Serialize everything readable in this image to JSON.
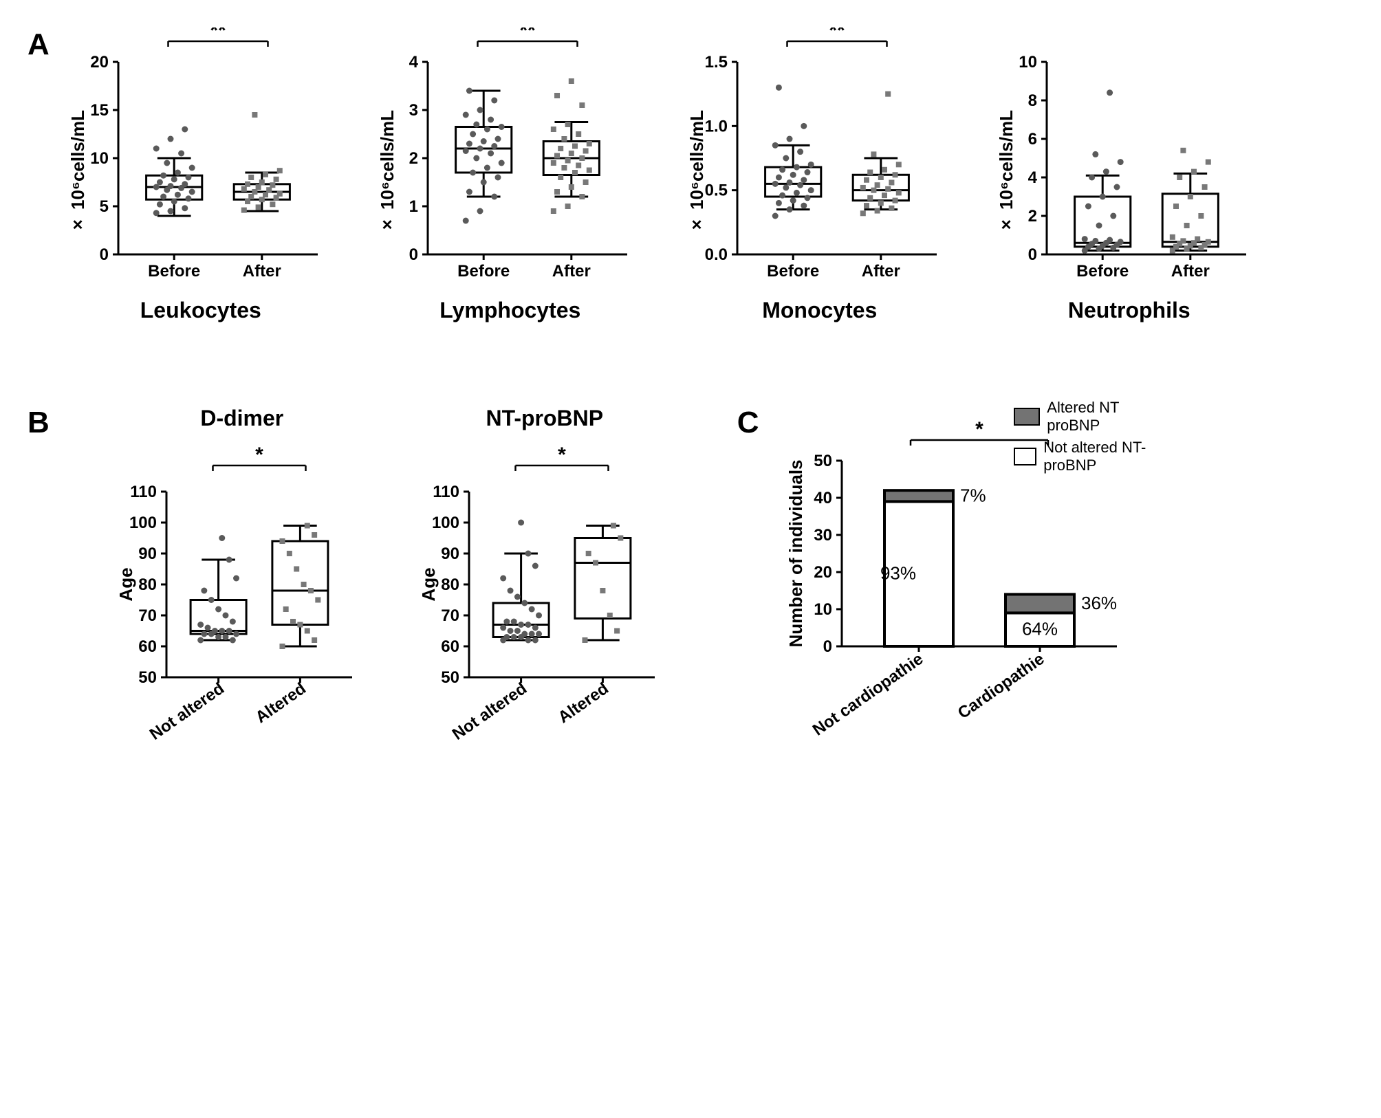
{
  "colors": {
    "background": "#ffffff",
    "axis": "#000000",
    "text": "#000000",
    "marker_before": "#5a5a5a",
    "marker_after": "#787878",
    "box_stroke": "#000000",
    "altered_fill": "#737373",
    "not_altered_fill": "#ffffff"
  },
  "panel_labels": {
    "a": "A",
    "b": "B",
    "c": "C"
  },
  "panelA": {
    "ylabel": "× 10⁶cells/mL",
    "xticks": [
      "Before",
      "After"
    ],
    "charts": [
      {
        "title": "Leukocytes",
        "sig": "**",
        "ylim": [
          0,
          20
        ],
        "ytick_step": 5,
        "before": {
          "min": 4.0,
          "q1": 5.7,
          "median": 7.0,
          "q3": 8.2,
          "max": 10.0,
          "points": [
            4.3,
            4.5,
            4.8,
            5.2,
            5.5,
            5.8,
            6.0,
            6.2,
            6.5,
            6.7,
            6.9,
            7.0,
            7.1,
            7.3,
            7.5,
            7.8,
            8.0,
            8.2,
            8.5,
            9.0,
            9.5,
            10.5,
            11.0,
            12.0,
            13.0
          ]
        },
        "after": {
          "min": 4.5,
          "q1": 5.7,
          "median": 6.5,
          "q3": 7.3,
          "max": 8.5,
          "points": [
            4.6,
            4.9,
            5.2,
            5.5,
            5.7,
            5.9,
            6.0,
            6.2,
            6.3,
            6.5,
            6.7,
            6.8,
            7.0,
            7.2,
            7.3,
            7.5,
            7.8,
            8.0,
            8.3,
            8.7,
            14.5
          ]
        }
      },
      {
        "title": "Lymphocytes",
        "sig": "**",
        "ylim": [
          0,
          4
        ],
        "ytick_step": 1,
        "before": {
          "min": 1.2,
          "q1": 1.7,
          "median": 2.2,
          "q3": 2.65,
          "max": 3.4,
          "points": [
            0.7,
            0.9,
            1.2,
            1.3,
            1.5,
            1.6,
            1.7,
            1.8,
            1.9,
            2.0,
            2.1,
            2.15,
            2.2,
            2.25,
            2.3,
            2.35,
            2.4,
            2.5,
            2.6,
            2.65,
            2.7,
            2.8,
            2.9,
            3.0,
            3.2,
            3.4
          ]
        },
        "after": {
          "min": 1.2,
          "q1": 1.65,
          "median": 2.0,
          "q3": 2.35,
          "max": 2.75,
          "points": [
            0.9,
            1.0,
            1.2,
            1.3,
            1.4,
            1.5,
            1.6,
            1.7,
            1.75,
            1.8,
            1.85,
            1.9,
            1.95,
            2.0,
            2.05,
            2.1,
            2.15,
            2.2,
            2.25,
            2.3,
            2.4,
            2.5,
            2.6,
            2.7,
            3.1,
            3.3,
            3.6
          ]
        }
      },
      {
        "title": "Monocytes",
        "sig": "**",
        "ylim": [
          0,
          1.5
        ],
        "ytick_step": 0.5,
        "before": {
          "min": 0.35,
          "q1": 0.45,
          "median": 0.55,
          "q3": 0.68,
          "max": 0.85,
          "points": [
            0.3,
            0.35,
            0.38,
            0.4,
            0.42,
            0.44,
            0.46,
            0.48,
            0.5,
            0.52,
            0.54,
            0.55,
            0.56,
            0.58,
            0.6,
            0.62,
            0.64,
            0.66,
            0.68,
            0.7,
            0.75,
            0.8,
            0.85,
            0.9,
            1.0,
            1.3
          ]
        },
        "after": {
          "min": 0.35,
          "q1": 0.42,
          "median": 0.5,
          "q3": 0.62,
          "max": 0.75,
          "points": [
            0.32,
            0.34,
            0.36,
            0.38,
            0.4,
            0.42,
            0.44,
            0.46,
            0.48,
            0.5,
            0.51,
            0.52,
            0.54,
            0.56,
            0.58,
            0.6,
            0.62,
            0.64,
            0.66,
            0.7,
            0.78,
            1.25
          ]
        }
      },
      {
        "title": "Neutrophils",
        "sig": "",
        "ylim": [
          0,
          10
        ],
        "ytick_step": 2,
        "before": {
          "min": 0.2,
          "q1": 0.4,
          "median": 0.6,
          "q3": 3.0,
          "max": 4.1,
          "points": [
            0.2,
            0.3,
            0.35,
            0.4,
            0.45,
            0.5,
            0.55,
            0.6,
            0.65,
            0.7,
            0.75,
            0.8,
            1.5,
            2.0,
            2.5,
            3.0,
            3.5,
            4.0,
            4.3,
            4.8,
            5.2,
            8.4
          ]
        },
        "after": {
          "min": 0.2,
          "q1": 0.4,
          "median": 0.65,
          "q3": 3.15,
          "max": 4.2,
          "points": [
            0.2,
            0.3,
            0.35,
            0.4,
            0.45,
            0.5,
            0.55,
            0.6,
            0.65,
            0.7,
            0.8,
            0.9,
            1.5,
            2.0,
            2.5,
            3.0,
            3.5,
            4.0,
            4.3,
            4.8,
            5.4
          ]
        }
      }
    ]
  },
  "panelB": {
    "ylabel": "Age",
    "xticks": [
      "Not altered",
      "Altered"
    ],
    "ylim": [
      50,
      110
    ],
    "ytick_step": 10,
    "charts": [
      {
        "title": "D-dimer",
        "sig": "*",
        "not_altered": {
          "min": 62,
          "q1": 64,
          "median": 65,
          "q3": 75,
          "max": 88,
          "points": [
            62,
            62,
            63,
            63,
            64,
            64,
            64,
            65,
            65,
            65,
            66,
            67,
            68,
            70,
            72,
            75,
            78,
            82,
            88,
            95
          ]
        },
        "altered": {
          "min": 60,
          "q1": 67,
          "median": 78,
          "q3": 94,
          "max": 99,
          "points": [
            60,
            62,
            65,
            67,
            68,
            72,
            75,
            78,
            80,
            85,
            90,
            94,
            96,
            99
          ]
        }
      },
      {
        "title": "NT-proBNP",
        "sig": "*",
        "not_altered": {
          "min": 62,
          "q1": 63,
          "median": 67,
          "q3": 74,
          "max": 90,
          "points": [
            62,
            62,
            62,
            63,
            63,
            63,
            64,
            64,
            64,
            65,
            65,
            66,
            66,
            67,
            67,
            68,
            68,
            70,
            72,
            74,
            76,
            78,
            82,
            86,
            90,
            100
          ]
        },
        "altered": {
          "min": 62,
          "q1": 69,
          "median": 87,
          "q3": 95,
          "max": 99,
          "points": [
            62,
            65,
            70,
            78,
            87,
            90,
            95,
            99
          ]
        }
      }
    ]
  },
  "panelC": {
    "ylabel": "Number of individuals",
    "ylim": [
      0,
      50
    ],
    "ytick_step": 10,
    "sig": "*",
    "legend": {
      "altered": "Altered NT proBNP",
      "not_altered": "Not altered NT-proBNP"
    },
    "bars": [
      {
        "label": "Not cardiopathie",
        "not_altered": 39,
        "altered": 3,
        "pct_na": "93%",
        "pct_a": "7%"
      },
      {
        "label": "Cardiopathie",
        "not_altered": 9,
        "altered": 5,
        "pct_na": "64%",
        "pct_a": "36%"
      }
    ]
  }
}
